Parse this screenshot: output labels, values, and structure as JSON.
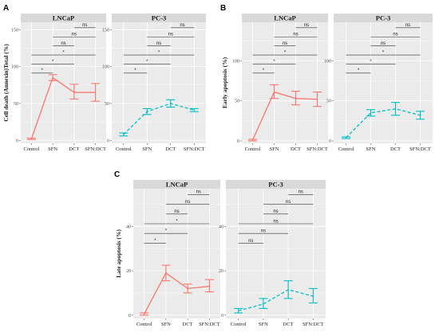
{
  "colors": {
    "lncap": "#F8766D",
    "pc3": "#00BFC4",
    "panel_bg": "#EBEBEB",
    "strip_bg": "#D9D9D9",
    "grid": "#FFFFFF",
    "bracket": "#333333"
  },
  "chart_data": [
    {
      "panel": "A",
      "type": "line",
      "ylabel": "Cell death (Annexin)Total (%)",
      "ylim": [
        -4,
        160
      ],
      "yticks": [
        0,
        50,
        100,
        150
      ],
      "categories": [
        "Control",
        "SFN",
        "DCT",
        "SFN:DCT"
      ],
      "facets": [
        {
          "title": "LNCaP",
          "line_style": "solid",
          "color": "#F8766D",
          "values": [
            2,
            85,
            65,
            65
          ],
          "errors": [
            [
              1,
              3
            ],
            [
              81,
              89
            ],
            [
              56,
              76
            ],
            [
              53,
              77
            ]
          ],
          "comparisons": [
            {
              "from": "Control",
              "to": "SFN",
              "label": "*"
            },
            {
              "from": "Control",
              "to": "DCT",
              "label": "*"
            },
            {
              "from": "Control",
              "to": "SFN:DCT",
              "label": "*"
            },
            {
              "from": "SFN",
              "to": "DCT",
              "label": "ns"
            },
            {
              "from": "SFN",
              "to": "SFN:DCT",
              "label": "ns"
            },
            {
              "from": "DCT",
              "to": "SFN:DCT",
              "label": "ns"
            }
          ]
        },
        {
          "title": "PC-3",
          "line_style": "dashed",
          "color": "#00BFC4",
          "values": [
            8,
            39,
            50,
            41
          ],
          "errors": [
            [
              6,
              10
            ],
            [
              35,
              43
            ],
            [
              45,
              55
            ],
            [
              39,
              43
            ]
          ],
          "comparisons": [
            {
              "from": "Control",
              "to": "SFN",
              "label": "*"
            },
            {
              "from": "Control",
              "to": "DCT",
              "label": "*"
            },
            {
              "from": "Control",
              "to": "SFN:DCT",
              "label": "*"
            },
            {
              "from": "SFN",
              "to": "DCT",
              "label": "ns"
            },
            {
              "from": "SFN",
              "to": "SFN:DCT",
              "label": "ns"
            },
            {
              "from": "DCT",
              "to": "SFN:DCT",
              "label": "ns"
            }
          ]
        }
      ]
    },
    {
      "panel": "B",
      "type": "line",
      "ylabel": "Early apoptosis (%)",
      "ylim": [
        -3,
        148
      ],
      "yticks": [
        0,
        50,
        100
      ],
      "categories": [
        "Control",
        "SFN",
        "DCT",
        "SFN:DCT"
      ],
      "facets": [
        {
          "title": "LNCaP",
          "line_style": "solid",
          "color": "#F8766D",
          "values": [
            1,
            61,
            53,
            52
          ],
          "errors": [
            [
              0,
              2
            ],
            [
              53,
              70
            ],
            [
              45,
              62
            ],
            [
              43,
              61
            ]
          ],
          "comparisons": [
            {
              "from": "Control",
              "to": "SFN",
              "label": "*"
            },
            {
              "from": "Control",
              "to": "DCT",
              "label": "*"
            },
            {
              "from": "Control",
              "to": "SFN:DCT",
              "label": "*"
            },
            {
              "from": "SFN",
              "to": "DCT",
              "label": "ns"
            },
            {
              "from": "SFN",
              "to": "SFN:DCT",
              "label": "ns"
            },
            {
              "from": "DCT",
              "to": "SFN:DCT",
              "label": "ns"
            }
          ]
        },
        {
          "title": "PC-3",
          "line_style": "dashed",
          "color": "#00BFC4",
          "values": [
            4,
            35,
            40,
            32
          ],
          "errors": [
            [
              3,
              5
            ],
            [
              31,
              39
            ],
            [
              32,
              48
            ],
            [
              27,
              37
            ]
          ],
          "comparisons": [
            {
              "from": "Control",
              "to": "SFN",
              "label": "*"
            },
            {
              "from": "Control",
              "to": "DCT",
              "label": "*"
            },
            {
              "from": "Control",
              "to": "SFN:DCT",
              "label": "*"
            },
            {
              "from": "SFN",
              "to": "DCT",
              "label": "ns"
            },
            {
              "from": "SFN",
              "to": "SFN:DCT",
              "label": "ns"
            },
            {
              "from": "DCT",
              "to": "SFN:DCT",
              "label": "ns"
            }
          ]
        }
      ]
    },
    {
      "panel": "C",
      "type": "line",
      "ylabel": "Late apoptosis (%)",
      "ylim": [
        -1.5,
        57
      ],
      "yticks": [
        0,
        20,
        40
      ],
      "categories": [
        "Control",
        "SFN",
        "DCT",
        "SFN:DCT"
      ],
      "facets": [
        {
          "title": "LNCaP",
          "line_style": "solid",
          "color": "#F8766D",
          "values": [
            0.5,
            19,
            12,
            13
          ],
          "errors": [
            [
              0,
              1
            ],
            [
              15.5,
              22.5
            ],
            [
              10,
              14
            ],
            [
              10.5,
              16
            ]
          ],
          "comparisons": [
            {
              "from": "Control",
              "to": "SFN",
              "label": "*"
            },
            {
              "from": "Control",
              "to": "DCT",
              "label": "*"
            },
            {
              "from": "Control",
              "to": "SFN:DCT",
              "label": "*"
            },
            {
              "from": "SFN",
              "to": "DCT",
              "label": "ns"
            },
            {
              "from": "SFN",
              "to": "SFN:DCT",
              "label": "ns"
            },
            {
              "from": "DCT",
              "to": "SFN:DCT",
              "label": "ns"
            }
          ]
        },
        {
          "title": "PC-3",
          "line_style": "dashed",
          "color": "#00BFC4",
          "values": [
            2,
            5,
            11.5,
            8.5
          ],
          "errors": [
            [
              1,
              3
            ],
            [
              3,
              7.5
            ],
            [
              7.5,
              15.5
            ],
            [
              5.5,
              12
            ]
          ],
          "comparisons": [
            {
              "from": "Control",
              "to": "SFN",
              "label": "ns"
            },
            {
              "from": "Control",
              "to": "DCT",
              "label": "ns"
            },
            {
              "from": "Control",
              "to": "SFN:DCT",
              "label": "ns"
            },
            {
              "from": "SFN",
              "to": "DCT",
              "label": "ns"
            },
            {
              "from": "SFN",
              "to": "SFN:DCT",
              "label": "ns"
            },
            {
              "from": "DCT",
              "to": "SFN:DCT",
              "label": "ns"
            }
          ]
        }
      ]
    }
  ]
}
